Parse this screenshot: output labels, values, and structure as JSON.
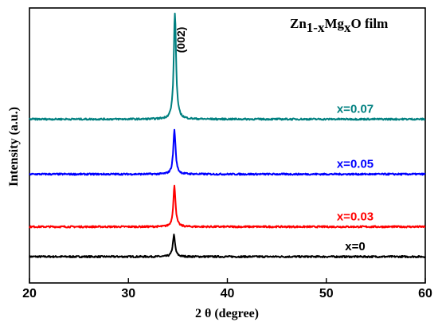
{
  "chart_data": {
    "type": "line",
    "title": {
      "prefix": "Zn",
      "sub1": "1-x",
      "mid": "Mg",
      "sub2": "x",
      "suffix": "O film"
    },
    "xlabel": "2 θ (degree)",
    "ylabel": "Intensity (a.u.)",
    "xlim": [
      20,
      60
    ],
    "x_ticks": [
      "20",
      "30",
      "40",
      "50",
      "60"
    ],
    "x_tick_values": [
      20,
      30,
      40,
      50,
      60
    ],
    "y_ticks": "none",
    "grid": false,
    "annotations": [
      {
        "text": "(002)",
        "x": 34.9
      }
    ],
    "series": [
      {
        "name": "x=0",
        "color": "#000000",
        "offset": 0.0,
        "peak_x": 34.6,
        "peak_height": 0.09,
        "noise": 0.0035
      },
      {
        "name": "x=0.03",
        "color": "#ff0000",
        "offset": 0.125,
        "peak_x": 34.65,
        "peak_height": 0.17,
        "noise": 0.0035
      },
      {
        "name": "x=0.05",
        "color": "#0000ff",
        "offset": 0.345,
        "peak_x": 34.65,
        "peak_height": 0.185,
        "noise": 0.0035
      },
      {
        "name": "x=0.07",
        "color": "#008080",
        "offset": 0.575,
        "peak_x": 34.7,
        "peak_height": 0.445,
        "noise": 0.0035
      }
    ]
  }
}
